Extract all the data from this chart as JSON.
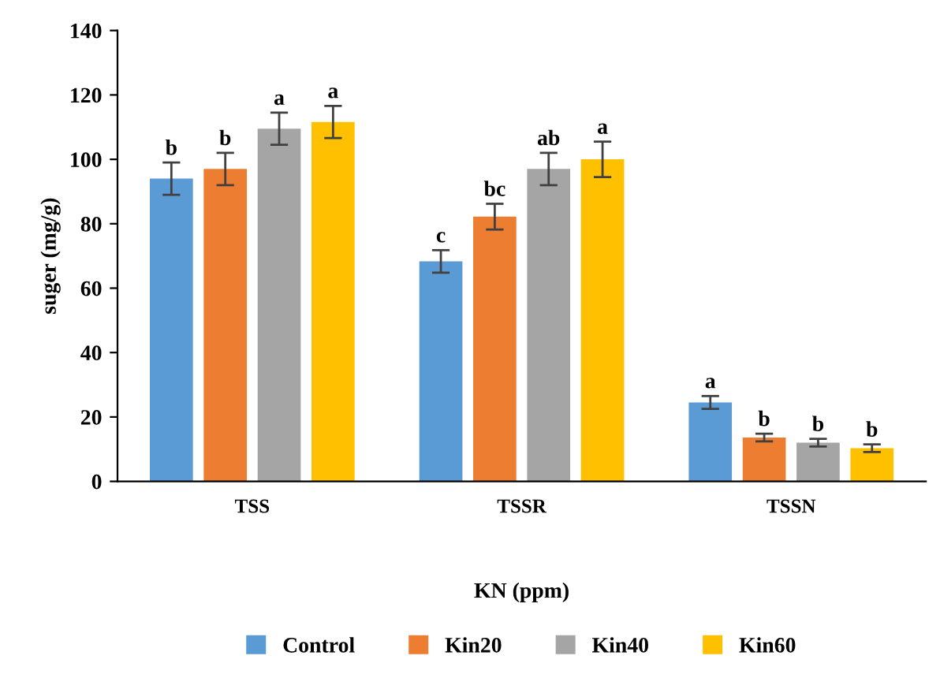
{
  "chart_data": {
    "type": "bar",
    "xlabel": "KN (ppm)",
    "ylabel": "suger (mg/g)",
    "categories": [
      "TSS",
      "TSSR",
      "TSSN"
    ],
    "series": [
      {
        "name": "Control",
        "color": "#5b9bd5",
        "values": [
          94,
          68.3,
          24.5
        ],
        "errors": [
          5,
          3.5,
          2
        ],
        "value_labels": [
          "b",
          "c",
          "a"
        ]
      },
      {
        "name": "Kin20",
        "color": "#ed7d31",
        "values": [
          97,
          82.2,
          13.6
        ],
        "errors": [
          5,
          4,
          1.2
        ],
        "value_labels": [
          "b",
          "bc",
          "b"
        ]
      },
      {
        "name": "Kin40",
        "color": "#a5a5a5",
        "values": [
          109.5,
          97,
          12
        ],
        "errors": [
          5,
          5,
          1.2
        ],
        "value_labels": [
          "a",
          "ab",
          "b"
        ]
      },
      {
        "name": "Kin60",
        "color": "#ffc000",
        "values": [
          111.6,
          100,
          10.3
        ],
        "errors": [
          5,
          5.5,
          1.2
        ],
        "value_labels": [
          "a",
          "a",
          "b"
        ]
      }
    ],
    "ylim": [
      0,
      140
    ],
    "yticks": [
      0,
      20,
      40,
      60,
      80,
      100,
      120,
      140
    ],
    "grid": false,
    "legend": "bottom"
  }
}
